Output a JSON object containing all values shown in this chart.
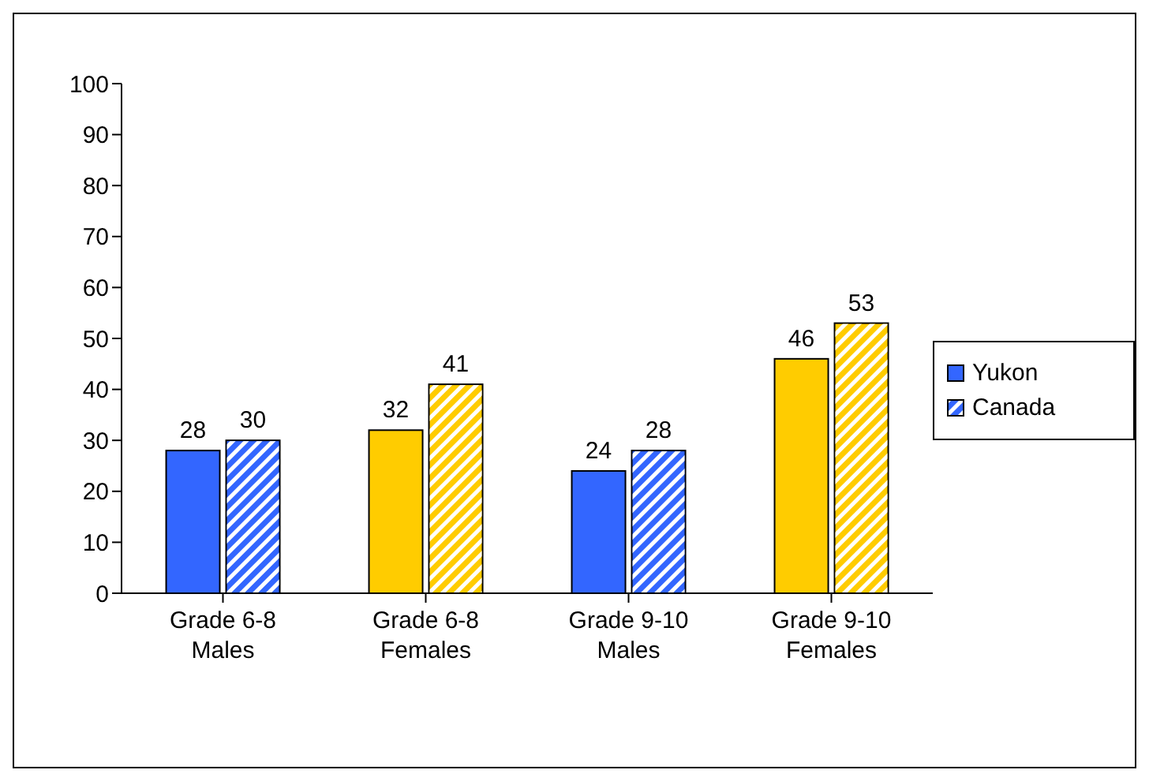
{
  "chart_data": {
    "type": "bar",
    "categories": [
      "Grade 6-8 Males",
      "Grade 6-8 Females",
      "Grade 9-10 Males",
      "Grade 9-10 Females"
    ],
    "series": [
      {
        "name": "Yukon",
        "values": [
          28,
          32,
          24,
          46
        ],
        "colors": [
          "#3366ff",
          "#ffcc00",
          "#3366ff",
          "#ffcc00"
        ]
      },
      {
        "name": "Canada",
        "values": [
          30,
          41,
          28,
          53
        ],
        "colors": [
          "#3366ff",
          "#ffcc00",
          "#3366ff",
          "#ffcc00"
        ]
      }
    ],
    "ylim": [
      0,
      100
    ],
    "yticks": [
      0,
      10,
      20,
      30,
      40,
      50,
      60,
      70,
      80,
      90,
      100
    ],
    "data_labels": true,
    "grid": false,
    "legend": "right"
  }
}
